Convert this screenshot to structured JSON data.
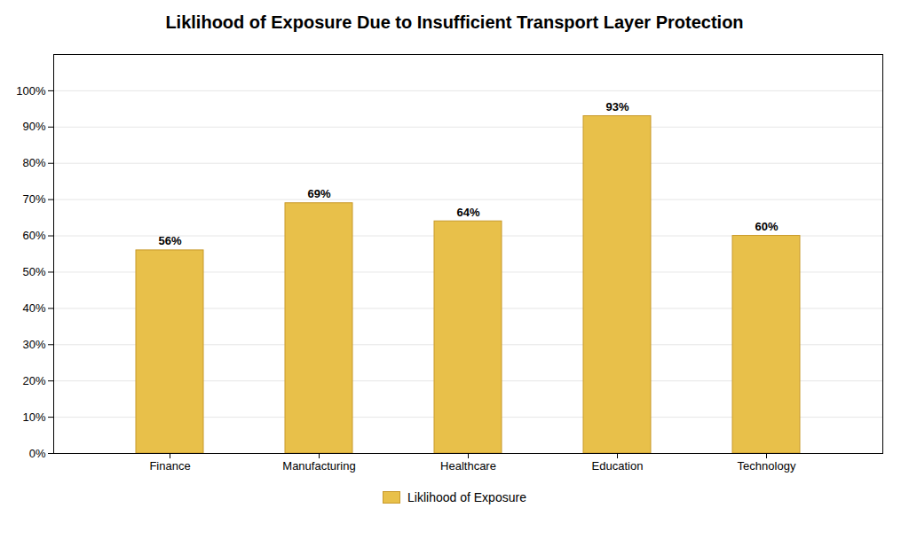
{
  "chart_data": {
    "type": "bar",
    "title": "Liklihood of Exposure Due to Insufficient Transport Layer Protection",
    "categories": [
      "Finance",
      "Manufacturing",
      "Healthcare",
      "Education",
      "Technology"
    ],
    "series": [
      {
        "name": "Liklihood of Exposure",
        "color": "#E8C04A",
        "values": [
          56,
          69,
          64,
          93,
          60
        ],
        "value_labels": [
          "56%",
          "69%",
          "64%",
          "93%",
          "60%"
        ]
      }
    ],
    "ylim": [
      0,
      110
    ],
    "yticks": [
      {
        "value": 0,
        "label": "0%"
      },
      {
        "value": 10,
        "label": "10%"
      },
      {
        "value": 20,
        "label": "20%"
      },
      {
        "value": 30,
        "label": "30%"
      },
      {
        "value": 40,
        "label": "40%"
      },
      {
        "value": 50,
        "label": "50%"
      },
      {
        "value": 60,
        "label": "60%"
      },
      {
        "value": 70,
        "label": "70%"
      },
      {
        "value": 80,
        "label": "80%"
      },
      {
        "value": 90,
        "label": "90%"
      },
      {
        "value": 100,
        "label": "100%"
      }
    ],
    "grid": true,
    "data_labels": true,
    "legend": "bottom"
  }
}
